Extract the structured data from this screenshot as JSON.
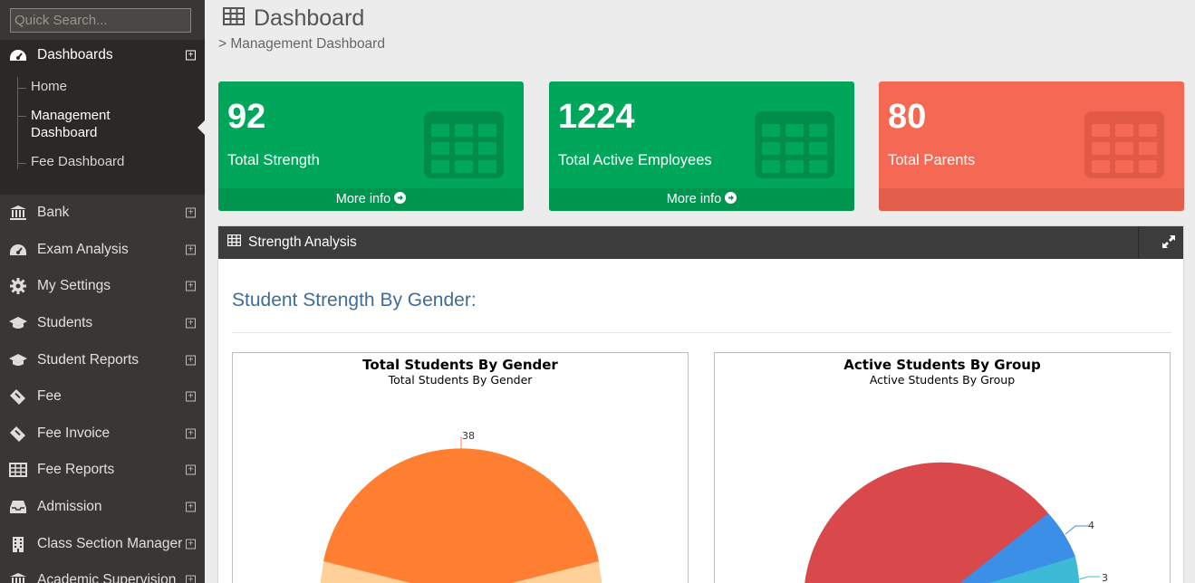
{
  "sidebar": {
    "search_placeholder": "Quick Search...",
    "dashboards_label": "Dashboards",
    "submenu": [
      "Home",
      "Management Dashboard",
      "Fee Dashboard"
    ],
    "items": [
      "Bank",
      "Exam Analysis",
      "My Settings",
      "Students",
      "Student Reports",
      "Fee",
      "Fee Invoice",
      "Fee Reports",
      "Admission",
      "Class Section Manager",
      "Academic Supervision"
    ]
  },
  "header": {
    "title": "Dashboard",
    "breadcrumb": "> Management Dashboard"
  },
  "stats": [
    {
      "value": "92",
      "label": "Total Strength",
      "more": "More info",
      "color": "#00a65a"
    },
    {
      "value": "1224",
      "label": "Total Active Employees",
      "more": "More info",
      "color": "#00a65a"
    },
    {
      "value": "80",
      "label": "Total Parents",
      "more": "",
      "color": "#f56954"
    }
  ],
  "panel": {
    "title": "Strength Analysis",
    "section_title": "Student Strength By Gender:"
  },
  "charts": [
    {
      "title": "Total Students By Gender",
      "subtitle": "Total Students By Gender"
    },
    {
      "title": "Active Students By Group",
      "subtitle": "Active Students By Group"
    }
  ],
  "chart_data": [
    {
      "type": "pie",
      "title": "Total Students By Gender",
      "subtitle": "Total Students By Gender",
      "slices": [
        {
          "value": 38,
          "label": "38",
          "color": "#ff7f32"
        },
        {
          "value": null,
          "label": "",
          "color": "#ffd199"
        }
      ]
    },
    {
      "type": "pie",
      "title": "Active Students By Group",
      "subtitle": "Active Students By Group",
      "slices": [
        {
          "value": null,
          "label": "",
          "color": "#d9484a"
        },
        {
          "value": 4,
          "label": "4",
          "color": "#3b8fe6"
        },
        {
          "value": 3,
          "label": "3",
          "color": "#3dbbd6"
        }
      ]
    }
  ]
}
